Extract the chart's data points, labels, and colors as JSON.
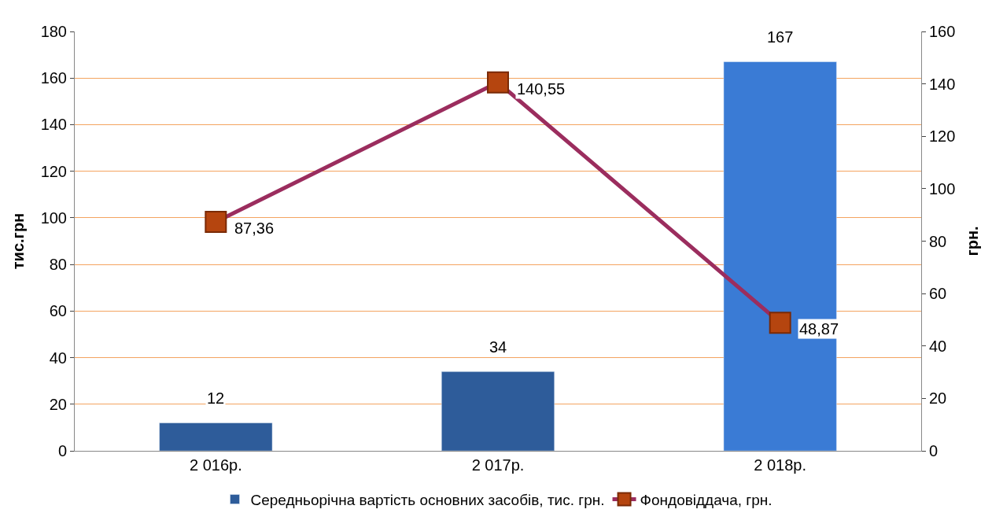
{
  "chart_data": {
    "type": "bar",
    "categories": [
      "2 016р.",
      "2 017р.",
      "2 018р."
    ],
    "ylabel": "тис.грн",
    "y2label": "грн.",
    "ylim": [
      0,
      180
    ],
    "yticks": [
      0,
      20,
      40,
      60,
      80,
      100,
      120,
      140,
      160,
      180
    ],
    "y2lim": [
      0,
      160
    ],
    "y2ticks": [
      0,
      20,
      40,
      60,
      80,
      100,
      120,
      140,
      160
    ],
    "grid": "y",
    "legend": "bottom",
    "series": [
      {
        "name": "Середньорічна вартість основних засобів, тис. грн.",
        "colors": [
          "#2e5c9a",
          "#2e5c9a",
          "#3a7bd5"
        ],
        "color": "#2e5c9a",
        "values": [
          12,
          34,
          167
        ],
        "data_labels": true
      },
      {
        "name": "Фондовіддача, грн.",
        "type": "line",
        "axis": "y2",
        "color": "#9b2d5e",
        "marker": "square",
        "line_style": "solid",
        "values": [
          87.36,
          140.55,
          48.87
        ],
        "value_labels": [
          "87,36",
          "140,55",
          "48,87"
        ]
      }
    ]
  }
}
